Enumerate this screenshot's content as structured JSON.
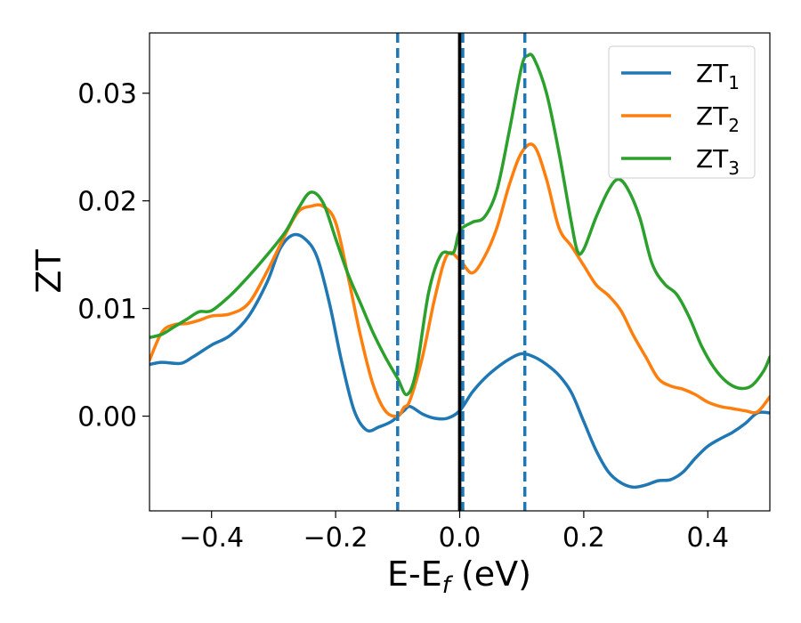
{
  "chart_data": {
    "type": "line",
    "xlabel": "E-E",
    "xlabel_sub": "f",
    "xlabel_unit": " (eV)",
    "ylabel": "ZT",
    "xlim": [
      -0.5,
      0.5
    ],
    "ylim": [
      -0.0088,
      0.0356
    ],
    "xticks": [
      -0.4,
      -0.2,
      0.0,
      0.2,
      0.4
    ],
    "xtick_labels": [
      "−0.4",
      "−0.2",
      "0.0",
      "0.2",
      "0.4"
    ],
    "yticks": [
      0.0,
      0.01,
      0.02,
      0.03
    ],
    "ytick_labels": [
      "0.00",
      "0.01",
      "0.02",
      "0.03"
    ],
    "grid": false,
    "legend_position": "top-right",
    "vlines_dashed": [
      -0.1,
      0.005,
      0.105
    ],
    "vline_solid": 0.0,
    "dashed_color": "#1f77b4",
    "solid_color": "#000000",
    "series": [
      {
        "name": "ZT",
        "subscript": "1",
        "color": "#1f77b4",
        "points": [
          [
            -0.5,
            0.0048
          ],
          [
            -0.48,
            0.005
          ],
          [
            -0.45,
            0.0049
          ],
          [
            -0.43,
            0.0055
          ],
          [
            -0.4,
            0.0066
          ],
          [
            -0.37,
            0.0075
          ],
          [
            -0.34,
            0.0093
          ],
          [
            -0.31,
            0.0125
          ],
          [
            -0.29,
            0.0155
          ],
          [
            -0.27,
            0.0168
          ],
          [
            -0.25,
            0.0165
          ],
          [
            -0.23,
            0.0148
          ],
          [
            -0.21,
            0.0105
          ],
          [
            -0.19,
            0.005
          ],
          [
            -0.17,
            0.0005
          ],
          [
            -0.15,
            -0.0013
          ],
          [
            -0.13,
            -0.001
          ],
          [
            -0.11,
            -0.0005
          ],
          [
            -0.1,
            0.0
          ],
          [
            -0.09,
            0.0005
          ],
          [
            -0.08,
            0.0009
          ],
          [
            -0.06,
            0.0002
          ],
          [
            -0.04,
            -0.0002
          ],
          [
            -0.02,
            -0.0002
          ],
          [
            0.0,
            0.0005
          ],
          [
            0.02,
            0.0022
          ],
          [
            0.04,
            0.0035
          ],
          [
            0.06,
            0.0045
          ],
          [
            0.08,
            0.0053
          ],
          [
            0.1,
            0.0058
          ],
          [
            0.12,
            0.0055
          ],
          [
            0.14,
            0.0048
          ],
          [
            0.16,
            0.0038
          ],
          [
            0.18,
            0.0022
          ],
          [
            0.2,
            -0.0005
          ],
          [
            0.22,
            -0.0032
          ],
          [
            0.24,
            -0.0052
          ],
          [
            0.26,
            -0.0062
          ],
          [
            0.28,
            -0.0066
          ],
          [
            0.3,
            -0.0064
          ],
          [
            0.32,
            -0.006
          ],
          [
            0.34,
            -0.0059
          ],
          [
            0.36,
            -0.0052
          ],
          [
            0.38,
            -0.0039
          ],
          [
            0.4,
            -0.0028
          ],
          [
            0.42,
            -0.0021
          ],
          [
            0.44,
            -0.0015
          ],
          [
            0.46,
            -0.0007
          ],
          [
            0.48,
            0.0003
          ],
          [
            0.5,
            0.0003
          ]
        ]
      },
      {
        "name": "ZT",
        "subscript": "2",
        "color": "#ff7f0e",
        "points": [
          [
            -0.5,
            0.0052
          ],
          [
            -0.48,
            0.0078
          ],
          [
            -0.46,
            0.0085
          ],
          [
            -0.44,
            0.0086
          ],
          [
            -0.42,
            0.0089
          ],
          [
            -0.4,
            0.0093
          ],
          [
            -0.37,
            0.0095
          ],
          [
            -0.34,
            0.0105
          ],
          [
            -0.31,
            0.0135
          ],
          [
            -0.28,
            0.017
          ],
          [
            -0.26,
            0.019
          ],
          [
            -0.24,
            0.0195
          ],
          [
            -0.22,
            0.0195
          ],
          [
            -0.2,
            0.018
          ],
          [
            -0.18,
            0.013
          ],
          [
            -0.16,
            0.0075
          ],
          [
            -0.14,
            0.003
          ],
          [
            -0.12,
            0.0005
          ],
          [
            -0.1,
            0.0
          ],
          [
            -0.09,
            0.0008
          ],
          [
            -0.08,
            0.0015
          ],
          [
            -0.06,
            0.0055
          ],
          [
            -0.04,
            0.011
          ],
          [
            -0.02,
            0.015
          ],
          [
            0.0,
            0.0145
          ],
          [
            0.02,
            0.0133
          ],
          [
            0.04,
            0.0148
          ],
          [
            0.06,
            0.0175
          ],
          [
            0.08,
            0.0215
          ],
          [
            0.1,
            0.0245
          ],
          [
            0.12,
            0.0251
          ],
          [
            0.14,
            0.022
          ],
          [
            0.16,
            0.0175
          ],
          [
            0.18,
            0.0158
          ],
          [
            0.2,
            0.014
          ],
          [
            0.22,
            0.0122
          ],
          [
            0.24,
            0.0112
          ],
          [
            0.26,
            0.0098
          ],
          [
            0.28,
            0.0075
          ],
          [
            0.3,
            0.0055
          ],
          [
            0.32,
            0.0035
          ],
          [
            0.34,
            0.0028
          ],
          [
            0.36,
            0.0025
          ],
          [
            0.38,
            0.002
          ],
          [
            0.4,
            0.0013
          ],
          [
            0.42,
            0.0009
          ],
          [
            0.44,
            0.0007
          ],
          [
            0.46,
            0.0005
          ],
          [
            0.48,
            0.0004
          ],
          [
            0.5,
            0.0018
          ]
        ]
      },
      {
        "name": "ZT",
        "subscript": "3",
        "color": "#2ca02c",
        "points": [
          [
            -0.5,
            0.0073
          ],
          [
            -0.48,
            0.0076
          ],
          [
            -0.46,
            0.0083
          ],
          [
            -0.44,
            0.009
          ],
          [
            -0.42,
            0.0097
          ],
          [
            -0.4,
            0.0098
          ],
          [
            -0.37,
            0.0112
          ],
          [
            -0.34,
            0.013
          ],
          [
            -0.31,
            0.015
          ],
          [
            -0.28,
            0.0172
          ],
          [
            -0.26,
            0.0193
          ],
          [
            -0.24,
            0.0208
          ],
          [
            -0.22,
            0.0198
          ],
          [
            -0.2,
            0.0165
          ],
          [
            -0.18,
            0.0132
          ],
          [
            -0.16,
            0.0105
          ],
          [
            -0.14,
            0.0078
          ],
          [
            -0.12,
            0.0055
          ],
          [
            -0.1,
            0.0035
          ],
          [
            -0.085,
            0.002
          ],
          [
            -0.07,
            0.0042
          ],
          [
            -0.05,
            0.0115
          ],
          [
            -0.03,
            0.015
          ],
          [
            -0.01,
            0.0152
          ],
          [
            0.0,
            0.0172
          ],
          [
            0.02,
            0.018
          ],
          [
            0.04,
            0.0185
          ],
          [
            0.06,
            0.021
          ],
          [
            0.08,
            0.0265
          ],
          [
            0.1,
            0.0325
          ],
          [
            0.11,
            0.0335
          ],
          [
            0.12,
            0.0332
          ],
          [
            0.14,
            0.03
          ],
          [
            0.16,
            0.0245
          ],
          [
            0.18,
            0.018
          ],
          [
            0.19,
            0.0153
          ],
          [
            0.2,
            0.0155
          ],
          [
            0.22,
            0.0185
          ],
          [
            0.24,
            0.021
          ],
          [
            0.255,
            0.022
          ],
          [
            0.27,
            0.0212
          ],
          [
            0.29,
            0.0185
          ],
          [
            0.31,
            0.0142
          ],
          [
            0.33,
            0.0123
          ],
          [
            0.35,
            0.0113
          ],
          [
            0.37,
            0.0092
          ],
          [
            0.39,
            0.0065
          ],
          [
            0.41,
            0.0045
          ],
          [
            0.43,
            0.0032
          ],
          [
            0.45,
            0.0026
          ],
          [
            0.47,
            0.0028
          ],
          [
            0.49,
            0.0042
          ],
          [
            0.5,
            0.0055
          ]
        ]
      }
    ]
  }
}
